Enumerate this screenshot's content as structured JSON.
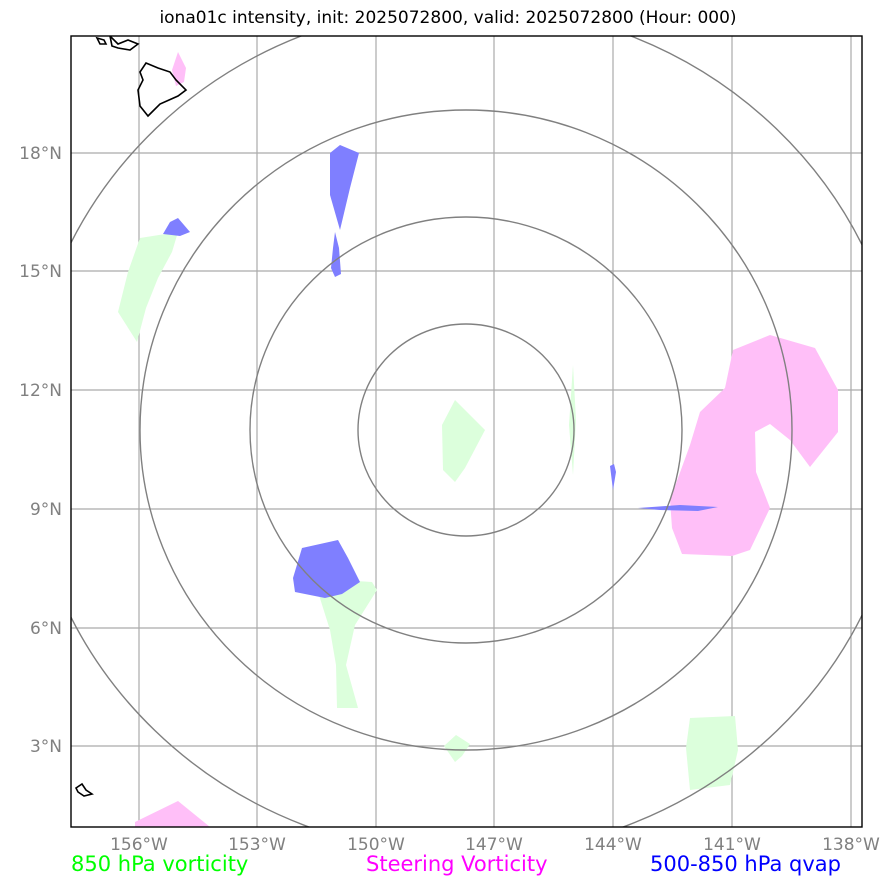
{
  "title": "iona01c intensity, init: 2025072800, valid: 2025072800 (Hour: 000)",
  "lon_ticks": [
    "156°W",
    "153°W",
    "150°W",
    "147°W",
    "144°W",
    "141°W",
    "138°W"
  ],
  "lat_ticks": [
    "18°N",
    "15°N",
    "12°N",
    "9°N",
    "6°N",
    "3°N"
  ],
  "legend": {
    "left": {
      "label": "850 hPa vorticity",
      "color": "#00ff00"
    },
    "middle": {
      "label": "Steering Vorticity",
      "color": "#ff00ff"
    },
    "right": {
      "label": "500-850 hPa qvap",
      "color": "#0000ff"
    }
  },
  "colors": {
    "vorticity_850_fill": "#dcffdc",
    "steering_vorticity_fill": "#ffbff8",
    "qvap_fill": "#7f7fff",
    "gridline": "#aaaaaa",
    "range_ring": "#808080",
    "coastline": "#000000"
  },
  "map": {
    "lon_range": [
      -158.0,
      -138.0
    ],
    "lat_range": [
      1.0,
      21.0
    ],
    "center": {
      "lon": -147.0,
      "lat": 10.7
    }
  }
}
